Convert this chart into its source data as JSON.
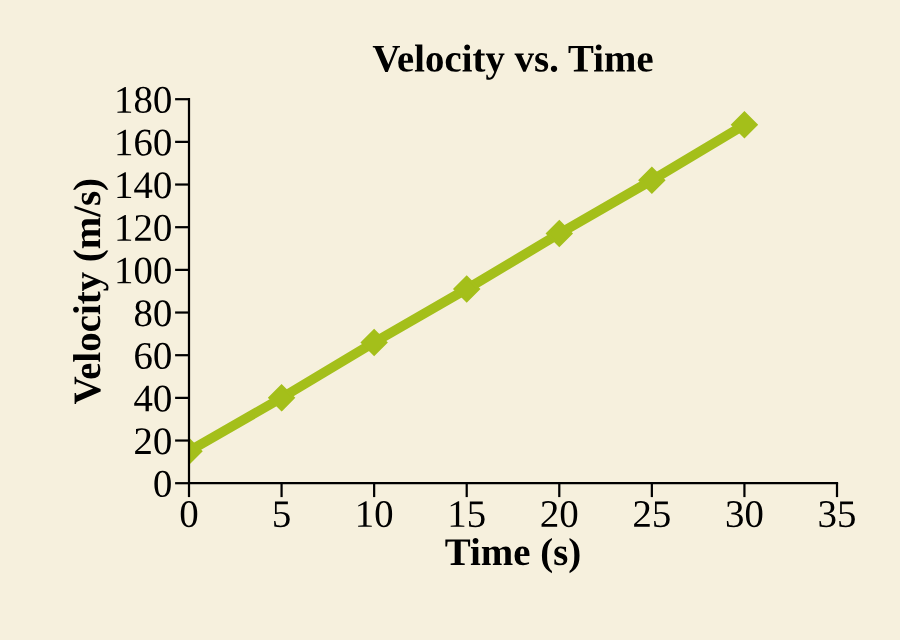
{
  "chart_data": {
    "type": "line",
    "title": "Velocity vs. Time",
    "xlabel": "Time (s)",
    "ylabel": "Velocity (m/s)",
    "x": [
      0,
      5,
      10,
      15,
      20,
      25,
      30
    ],
    "series": [
      {
        "color": "#a4bf1a",
        "values": [
          15,
          40,
          66,
          91,
          117,
          142,
          168
        ]
      }
    ],
    "xlim": [
      0,
      35
    ],
    "xticks": [
      0,
      5,
      10,
      15,
      20,
      25,
      30,
      35
    ],
    "ylim": [
      0,
      180
    ],
    "yticks": [
      0,
      20,
      40,
      60,
      80,
      100,
      120,
      140,
      160,
      180
    ],
    "marker": "diamond",
    "line_style": "solid",
    "grid": false,
    "legend": false
  }
}
